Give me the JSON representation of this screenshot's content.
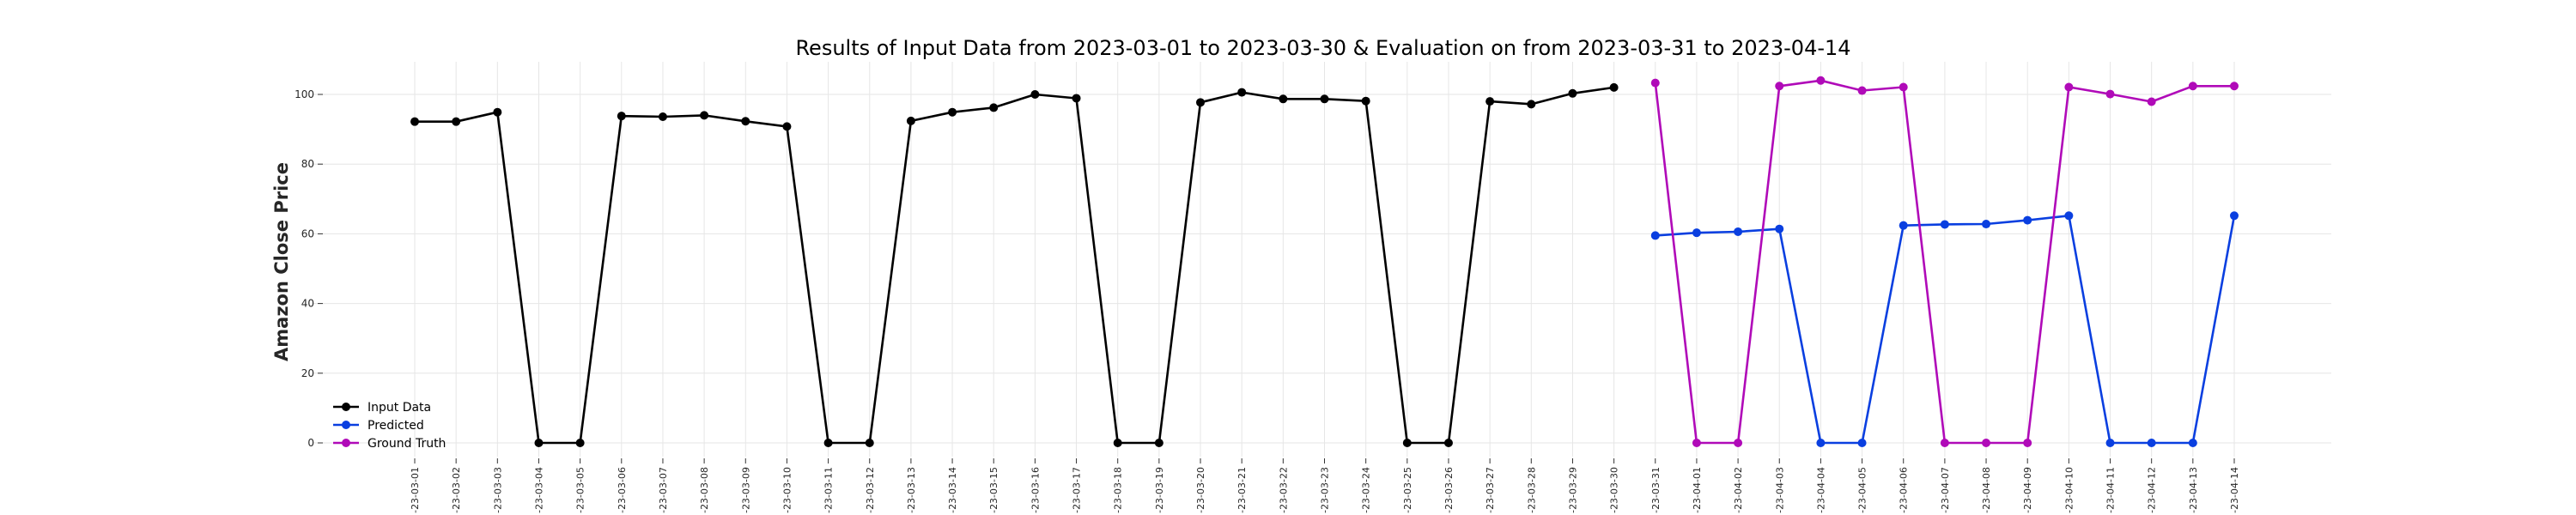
{
  "chart_data": {
    "type": "line",
    "title": "Results of Input Data from 2023-03-01 to 2023-03-30 & Evaluation on from 2023-03-31 to 2023-04-14",
    "xlabel": "",
    "ylabel": "Amazon Close Price",
    "ylim": [
      -5,
      110
    ],
    "yticks": [
      0,
      20,
      40,
      60,
      80,
      100
    ],
    "grid": true,
    "legend_position": "lower-left",
    "x": [
      "2023-03-01",
      "2023-03-02",
      "2023-03-03",
      "2023-03-04",
      "2023-03-05",
      "2023-03-06",
      "2023-03-07",
      "2023-03-08",
      "2023-03-09",
      "2023-03-10",
      "2023-03-11",
      "2023-03-12",
      "2023-03-13",
      "2023-03-14",
      "2023-03-15",
      "2023-03-16",
      "2023-03-17",
      "2023-03-18",
      "2023-03-19",
      "2023-03-20",
      "2023-03-21",
      "2023-03-22",
      "2023-03-23",
      "2023-03-24",
      "2023-03-25",
      "2023-03-26",
      "2023-03-27",
      "2023-03-28",
      "2023-03-29",
      "2023-03-30",
      "2023-03-31",
      "2023-04-01",
      "2023-04-02",
      "2023-04-03",
      "2023-04-04",
      "2023-04-05",
      "2023-04-06",
      "2023-04-07",
      "2023-04-08",
      "2023-04-09",
      "2023-04-10",
      "2023-04-11",
      "2023-04-12",
      "2023-04-13",
      "2023-04-14"
    ],
    "x_tick_labels": [
      "-23-03-01",
      "-23-03-02",
      "-23-03-03",
      "-23-03-04",
      "-23-03-05",
      "-23-03-06",
      "-23-03-07",
      "-23-03-08",
      "-23-03-09",
      "-23-03-10",
      "-23-03-11",
      "-23-03-12",
      "-23-03-13",
      "-23-03-14",
      "-23-03-15",
      "-23-03-16",
      "-23-03-17",
      "-23-03-18",
      "-23-03-19",
      "-23-03-20",
      "-23-03-21",
      "-23-03-22",
      "-23-03-23",
      "-23-03-24",
      "-23-03-25",
      "-23-03-26",
      "-23-03-27",
      "-23-03-28",
      "-23-03-29",
      "-23-03-30",
      "-23-03-31",
      "-23-04-01",
      "-23-04-02",
      "-23-04-03",
      "-23-04-04",
      "-23-04-05",
      "-23-04-06",
      "-23-04-07",
      "-23-04-08",
      "-23-04-09",
      "-23-04-10",
      "-23-04-11",
      "-23-04-12",
      "-23-04-13",
      "-23-04-14"
    ],
    "series": [
      {
        "name": "Input Data",
        "color": "#000000",
        "x": [
          "2023-03-01",
          "2023-03-02",
          "2023-03-03",
          "2023-03-04",
          "2023-03-05",
          "2023-03-06",
          "2023-03-07",
          "2023-03-08",
          "2023-03-09",
          "2023-03-10",
          "2023-03-11",
          "2023-03-12",
          "2023-03-13",
          "2023-03-14",
          "2023-03-15",
          "2023-03-16",
          "2023-03-17",
          "2023-03-18",
          "2023-03-19",
          "2023-03-20",
          "2023-03-21",
          "2023-03-22",
          "2023-03-23",
          "2023-03-24",
          "2023-03-25",
          "2023-03-26",
          "2023-03-27",
          "2023-03-28",
          "2023-03-29",
          "2023-03-30"
        ],
        "values": [
          92.2,
          92.2,
          94.9,
          0,
          0,
          93.8,
          93.6,
          94.0,
          92.3,
          90.8,
          0,
          0,
          92.4,
          94.9,
          96.2,
          100.0,
          98.9,
          0,
          0,
          97.7,
          100.6,
          98.7,
          98.7,
          98.1,
          0,
          0,
          98.0,
          97.2,
          100.3,
          102.0
        ]
      },
      {
        "name": "Predicted",
        "color": "#0a3fe0",
        "x": [
          "2023-03-31",
          "2023-04-01",
          "2023-04-02",
          "2023-04-03",
          "2023-04-04",
          "2023-04-05",
          "2023-04-06",
          "2023-04-07",
          "2023-04-08",
          "2023-04-09",
          "2023-04-10",
          "2023-04-11",
          "2023-04-12",
          "2023-04-13",
          "2023-04-14"
        ],
        "values": [
          59.5,
          60.3,
          60.6,
          61.4,
          0,
          0,
          62.4,
          62.7,
          62.8,
          63.9,
          65.2,
          0,
          0,
          0,
          65.2
        ]
      },
      {
        "name": "Ground Truth",
        "color": "#b00ab8",
        "x": [
          "2023-03-31",
          "2023-04-01",
          "2023-04-02",
          "2023-04-03",
          "2023-04-04",
          "2023-04-05",
          "2023-04-06",
          "2023-04-07",
          "2023-04-08",
          "2023-04-09",
          "2023-04-10",
          "2023-04-11",
          "2023-04-12",
          "2023-04-13",
          "2023-04-14"
        ],
        "values": [
          103.3,
          0,
          0,
          102.4,
          104.0,
          101.1,
          102.1,
          0,
          0,
          0,
          102.1,
          100.1,
          97.9,
          102.4,
          102.4
        ]
      }
    ]
  }
}
